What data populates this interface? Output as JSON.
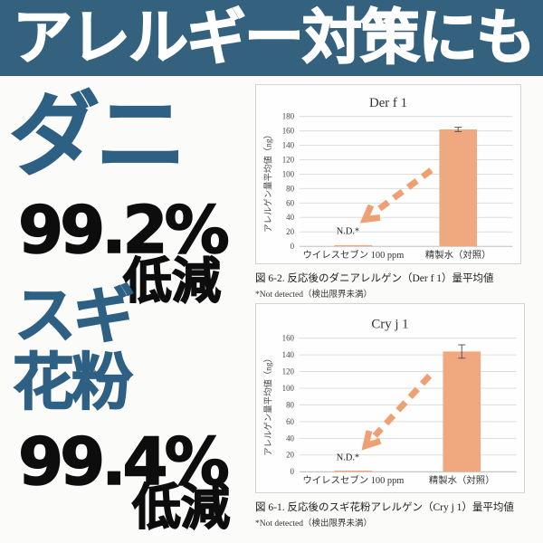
{
  "banner": {
    "title": "アレルギー対策にも",
    "bg_color": "#33617e",
    "text_color": "#ffffff"
  },
  "left_panel": {
    "dani_label": "ダニ",
    "dani_percent": "99.2%",
    "dani_reduction": "低減",
    "sugi_label": "スギ",
    "kafun_label": "花粉",
    "sugi_percent": "99.4%",
    "sugi_reduction": "低減",
    "accent_color": "#2e6084",
    "number_color": "#0d0d0d"
  },
  "chart_data": [
    {
      "type": "bar",
      "title": "Der f 1",
      "ylabel": "アレルゲン量平均値（ng）",
      "xlabel": "",
      "ylim": [
        0,
        180
      ],
      "ytick_step": 20,
      "grid": true,
      "legend": "none",
      "categories": [
        "ウイレスセブン 100 ppm",
        "精製水（対照）"
      ],
      "values": [
        1,
        162
      ],
      "errors": [
        0,
        3
      ],
      "nd_label": "N.D.*",
      "bar_color": "#f0a87e",
      "arrow_color": "#eda173",
      "caption": "図 6-2. 反応後のダニアレルゲン（Der f 1）量平均値",
      "footnote": "*Not detected（検出限界未満）"
    },
    {
      "type": "bar",
      "title": "Cry j 1",
      "ylabel": "アレルゲン量平均値（ng）",
      "xlabel": "",
      "ylim": [
        0,
        160
      ],
      "ytick_step": 20,
      "grid": true,
      "legend": "none",
      "categories": [
        "ウイレスセブン 100 ppm",
        "精製水（対照）"
      ],
      "values": [
        0.5,
        144
      ],
      "errors": [
        0,
        8
      ],
      "nd_label": "N.D.*",
      "bar_color": "#f0a87e",
      "arrow_color": "#eda173",
      "caption": "図 6-1. 反応後のスギ花粉アレルゲン（Cry j 1）量平均値",
      "footnote": "*Not detected（検出限界未満）"
    }
  ]
}
